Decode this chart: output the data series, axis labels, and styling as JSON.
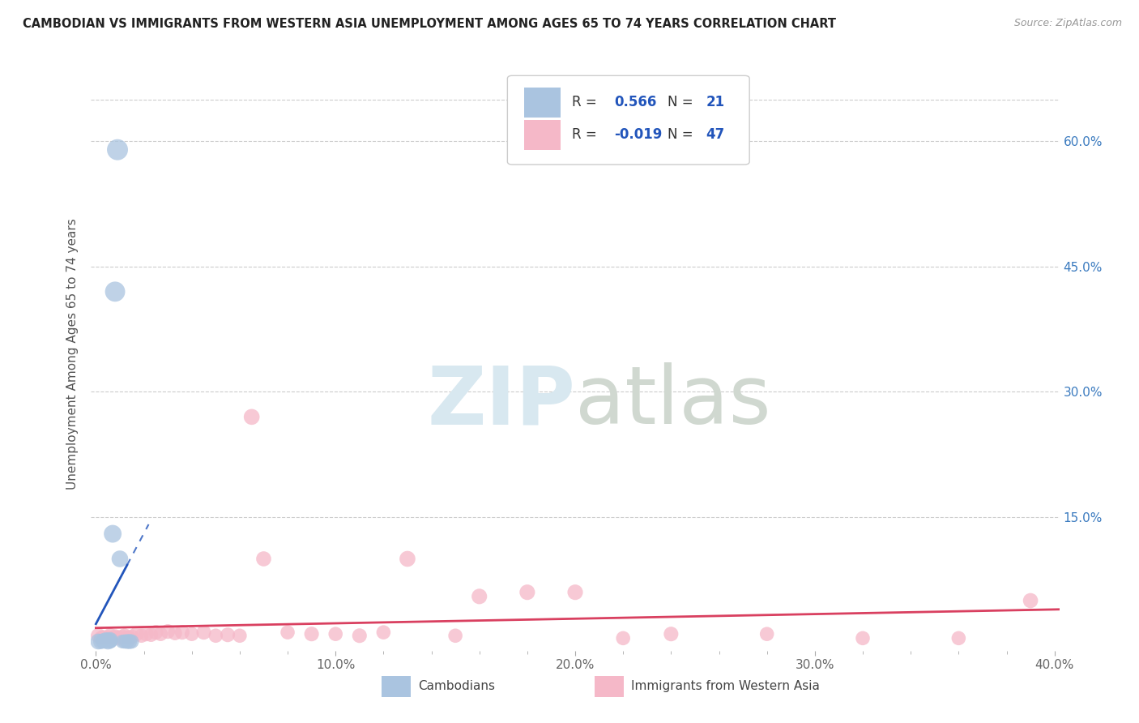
{
  "title": "CAMBODIAN VS IMMIGRANTS FROM WESTERN ASIA UNEMPLOYMENT AMONG AGES 65 TO 74 YEARS CORRELATION CHART",
  "source": "Source: ZipAtlas.com",
  "ylabel": "Unemployment Among Ages 65 to 74 years",
  "r_cambodian": 0.566,
  "n_cambodian": 21,
  "r_western_asia": -0.019,
  "n_western_asia": 47,
  "color_cambodian": "#aac4e0",
  "color_western_asia": "#f5b8c8",
  "line_color_cambodian": "#2255bb",
  "line_color_western_asia": "#d94060",
  "background_color": "#ffffff",
  "xlim": [
    -0.002,
    0.402
  ],
  "ylim": [
    -0.01,
    0.7
  ],
  "xticks": [
    0.0,
    0.1,
    0.2,
    0.3,
    0.4
  ],
  "yticks": [
    0.0,
    0.15,
    0.3,
    0.45,
    0.6
  ],
  "xtick_labels": [
    "0.0%",
    "10.0%",
    "20.0%",
    "30.0%",
    "40.0%"
  ],
  "ytick_labels_right": [
    "",
    "15.0%",
    "30.0%",
    "45.0%",
    "60.0%"
  ],
  "cambodian_x": [
    0.001,
    0.002,
    0.003,
    0.003,
    0.004,
    0.004,
    0.004,
    0.005,
    0.005,
    0.006,
    0.006,
    0.006,
    0.007,
    0.008,
    0.009,
    0.01,
    0.011,
    0.012,
    0.013,
    0.014,
    0.015
  ],
  "cambodian_y": [
    0.001,
    0.001,
    0.001,
    0.002,
    0.001,
    0.002,
    0.003,
    0.001,
    0.003,
    0.001,
    0.002,
    0.003,
    0.13,
    0.42,
    0.59,
    0.1,
    0.001,
    0.001,
    0.001,
    0.001,
    0.001
  ],
  "cambodian_size": [
    200,
    180,
    160,
    170,
    150,
    160,
    180,
    200,
    170,
    160,
    180,
    190,
    250,
    320,
    350,
    220,
    150,
    160,
    170,
    180,
    160
  ],
  "western_asia_x": [
    0.001,
    0.002,
    0.003,
    0.004,
    0.005,
    0.006,
    0.007,
    0.008,
    0.009,
    0.01,
    0.011,
    0.012,
    0.013,
    0.014,
    0.015,
    0.017,
    0.019,
    0.021,
    0.023,
    0.025,
    0.027,
    0.03,
    0.033,
    0.036,
    0.04,
    0.045,
    0.05,
    0.055,
    0.06,
    0.065,
    0.07,
    0.08,
    0.09,
    0.1,
    0.11,
    0.12,
    0.13,
    0.15,
    0.16,
    0.18,
    0.2,
    0.22,
    0.24,
    0.28,
    0.32,
    0.36,
    0.39
  ],
  "western_asia_y": [
    0.008,
    0.005,
    0.006,
    0.005,
    0.006,
    0.008,
    0.005,
    0.007,
    0.006,
    0.005,
    0.007,
    0.008,
    0.006,
    0.005,
    0.007,
    0.01,
    0.008,
    0.01,
    0.009,
    0.012,
    0.01,
    0.013,
    0.011,
    0.012,
    0.01,
    0.012,
    0.008,
    0.009,
    0.008,
    0.27,
    0.1,
    0.012,
    0.01,
    0.01,
    0.008,
    0.012,
    0.1,
    0.008,
    0.055,
    0.06,
    0.06,
    0.005,
    0.01,
    0.01,
    0.005,
    0.005,
    0.05
  ],
  "western_asia_size": [
    180,
    160,
    170,
    160,
    170,
    180,
    160,
    170,
    160,
    170,
    160,
    170,
    160,
    170,
    160,
    170,
    160,
    170,
    160,
    170,
    160,
    170,
    160,
    170,
    160,
    170,
    160,
    170,
    160,
    200,
    180,
    160,
    170,
    160,
    170,
    160,
    200,
    160,
    190,
    190,
    190,
    160,
    170,
    160,
    160,
    160,
    180
  ]
}
